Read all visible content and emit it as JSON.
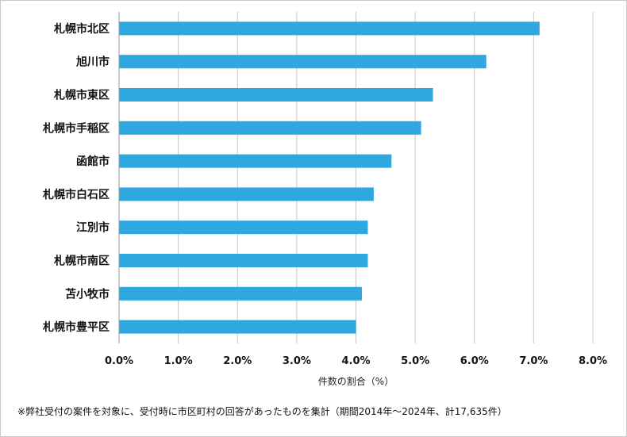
{
  "chart_data": {
    "type": "bar",
    "orientation": "horizontal",
    "categories": [
      "札幌市北区",
      "旭川市",
      "札幌市東区",
      "札幌市手稲区",
      "函館市",
      "札幌市白石区",
      "江別市",
      "札幌市南区",
      "苫小牧市",
      "札幌市豊平区"
    ],
    "values": [
      7.1,
      6.2,
      5.3,
      5.1,
      4.6,
      4.3,
      4.2,
      4.2,
      4.1,
      4.0
    ],
    "xlim": [
      0,
      8
    ],
    "xticks": [
      "0.0%",
      "1.0%",
      "2.0%",
      "3.0%",
      "4.0%",
      "5.0%",
      "6.0%",
      "7.0%",
      "8.0%"
    ],
    "xlabel": "件数の割合（%）",
    "grid": "vertical",
    "bar_color": "#2fa8e0"
  },
  "footnote": "※弊社受付の案件を対象に、受付時に市区町村の回答があったものを集計（期間2014年～2024年、計17,635件）"
}
